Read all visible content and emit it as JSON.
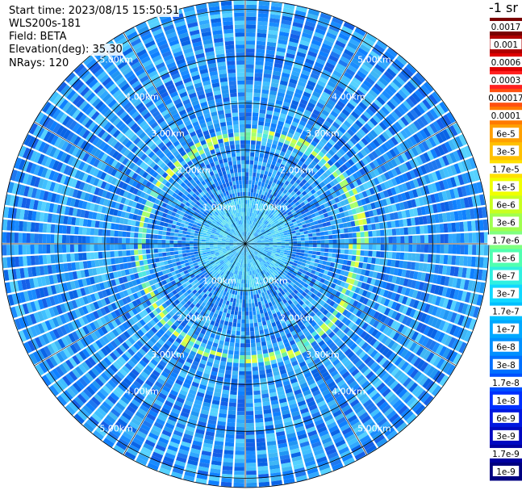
{
  "header": {
    "start_time": "Start time: 2023/08/15 15:50:51",
    "device": "WLS200s-181",
    "field": "Field: BETA",
    "elevation": "Elevation(deg): 35.30",
    "nrays": "NRays: 120"
  },
  "chart_data": {
    "type": "heatmap",
    "projection": "polar",
    "title": "",
    "n_rays": 120,
    "range_rings_km": [
      1.0,
      2.0,
      3.0,
      4.0,
      5.0
    ],
    "ring_label_text": [
      "1.00km",
      "2.00km",
      "3.00km",
      "4.00km",
      "5.00km"
    ],
    "max_range_km": 5.2,
    "spokes_deg": [
      0,
      30,
      60,
      90,
      120,
      150,
      180,
      210,
      240,
      270,
      300,
      330
    ],
    "feature": {
      "description_value": "enhanced backscatter ring",
      "ring_center_range_km": 2.35,
      "ring_peak_value": 1.7e-06
    },
    "background_value_range": [
      1e-09,
      3e-08
    ],
    "colorbar": {
      "unit_label": "-1 sr",
      "ticks": [
        "0.0017",
        "0.001",
        "0.0006",
        "0.0003",
        "0.00017",
        "0.0001",
        "6e-5",
        "3e-5",
        "1.7e-5",
        "1e-5",
        "6e-6",
        "3e-6",
        "1.7e-6",
        "1e-6",
        "6e-7",
        "3e-7",
        "1.7e-7",
        "1e-7",
        "6e-8",
        "3e-8",
        "1.7e-8",
        "1e-8",
        "6e-9",
        "3e-9",
        "1.7e-9",
        "1e-9"
      ],
      "colors": [
        "#7a0000",
        "#b00000",
        "#e00000",
        "#ff2020",
        "#ff5010",
        "#ff7a00",
        "#ffa000",
        "#ffc000",
        "#ffe000",
        "#f0ff00",
        "#c8ff20",
        "#a0ff50",
        "#80ff80",
        "#50ffb0",
        "#30f0e0",
        "#10d8ff",
        "#00c0ff",
        "#00a8ff",
        "#0090ff",
        "#0070ff",
        "#0050ff",
        "#0030ff",
        "#0018e0",
        "#0008c0",
        "#0000a0",
        "#000080"
      ]
    }
  }
}
